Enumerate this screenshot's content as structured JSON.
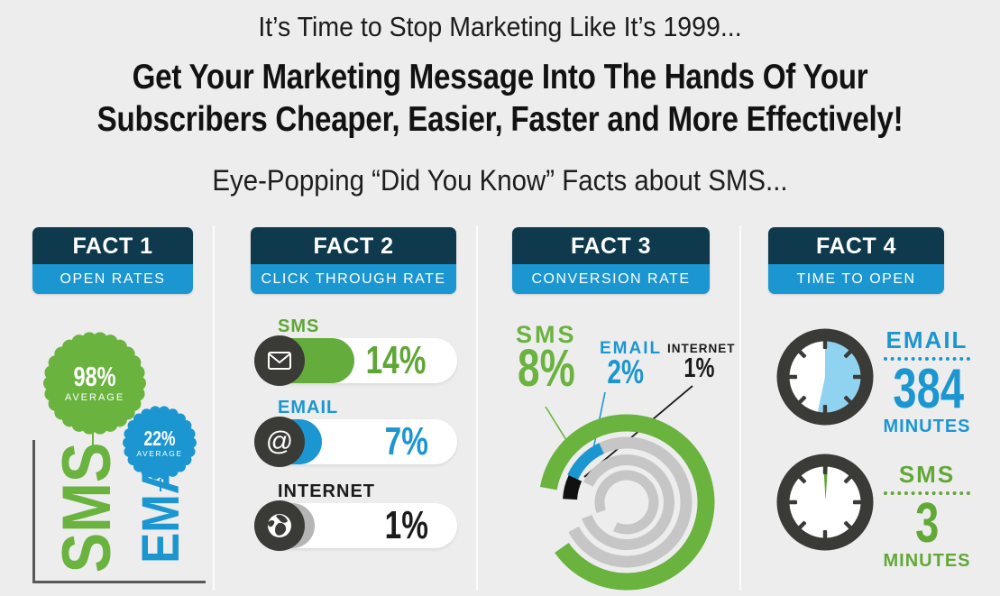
{
  "header": {
    "top": "It’s Time to Stop Marketing Like It’s 1999...",
    "main_line1": "Get Your Marketing Message Into The Hands Of Your",
    "main_line2": "Subscribers Cheaper, Easier, Faster and More Effectively!",
    "sub": "Eye-Popping “Did You Know” Facts about SMS..."
  },
  "colors": {
    "green": "#6ab33f",
    "blue": "#1b96d1",
    "navy": "#0f3a4e",
    "charcoal": "#3a3a37",
    "gray_arc": "#c6c6c6",
    "light_blue": "#8fd3f1",
    "background": "#ededed"
  },
  "facts": [
    {
      "title": "FACT 1",
      "subtitle": "OPEN RATES",
      "badges": [
        {
          "series": "SMS",
          "value": "98%",
          "note": "AVERAGE"
        },
        {
          "series": "EMAIL",
          "value": "22%",
          "note": "AVERAGE"
        }
      ]
    },
    {
      "title": "FACT 2",
      "subtitle": "CLICK THROUGH RATE",
      "rows": [
        {
          "label": "SMS",
          "value": "14%",
          "icon": "envelope-icon"
        },
        {
          "label": "EMAIL",
          "value": "7%",
          "icon": "at-icon",
          "glyph": "@"
        },
        {
          "label": "INTERNET",
          "value": "1%",
          "icon": "globe-icon"
        }
      ]
    },
    {
      "title": "FACT 3",
      "subtitle": "CONVERSION RATE",
      "segments": [
        {
          "label": "SMS",
          "value": "8%"
        },
        {
          "label": "EMAIL",
          "value": "2%"
        },
        {
          "label": "INTERNET",
          "value": "1%"
        }
      ]
    },
    {
      "title": "FACT 4",
      "subtitle": "TIME TO OPEN",
      "clocks": [
        {
          "label": "EMAIL",
          "value": "384",
          "unit": "MINUTES"
        },
        {
          "label": "SMS",
          "value": "3",
          "unit": "MINUTES"
        }
      ]
    }
  ],
  "chart_data": [
    {
      "type": "bar",
      "title": "Open Rates",
      "categories": [
        "SMS",
        "EMAIL"
      ],
      "values": [
        98,
        22
      ],
      "unit": "% average"
    },
    {
      "type": "bar",
      "title": "Click Through Rate",
      "categories": [
        "SMS",
        "EMAIL",
        "INTERNET"
      ],
      "values": [
        14,
        7,
        1
      ],
      "unit": "%"
    },
    {
      "type": "donut",
      "title": "Conversion Rate",
      "categories": [
        "SMS",
        "EMAIL",
        "INTERNET"
      ],
      "values": [
        8,
        2,
        1
      ],
      "unit": "%"
    },
    {
      "type": "clock",
      "title": "Time to Open",
      "categories": [
        "EMAIL",
        "SMS"
      ],
      "values": [
        384,
        3
      ],
      "unit": "minutes"
    }
  ]
}
